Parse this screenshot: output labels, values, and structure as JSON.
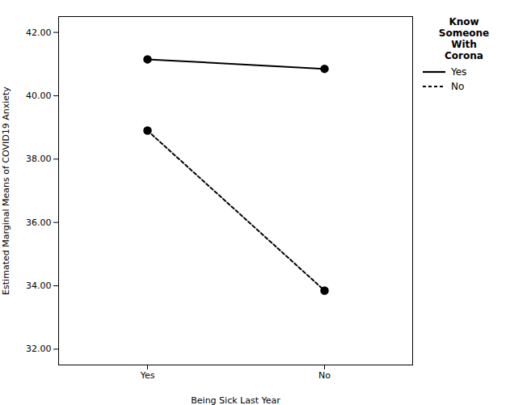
{
  "chart_data": {
    "type": "line",
    "xlabel": "Being Sick Last Year",
    "ylabel": "Estimated Marginal Means of COVID19 Anxiety",
    "categories": [
      "Yes",
      "No"
    ],
    "series": [
      {
        "name": "Yes",
        "color": "#000000",
        "line_style": "solid",
        "marker": "circle",
        "values": [
          41.15,
          40.85
        ]
      },
      {
        "name": "No",
        "color": "#000000",
        "line_style": "dashed",
        "marker": "circle",
        "values": [
          38.9,
          33.85
        ]
      }
    ],
    "ylim": [
      31.5,
      42.5
    ],
    "yticks": [
      {
        "value": 32,
        "label": "32.00"
      },
      {
        "value": 34,
        "label": "34.00"
      },
      {
        "value": 36,
        "label": "36.00"
      },
      {
        "value": 38,
        "label": "38.00"
      },
      {
        "value": 40,
        "label": "40.00"
      },
      {
        "value": 42,
        "label": "42.00"
      }
    ],
    "grid": false,
    "legend": "right",
    "legend_title": "Know\nSomeone\nWith\nCorona"
  }
}
